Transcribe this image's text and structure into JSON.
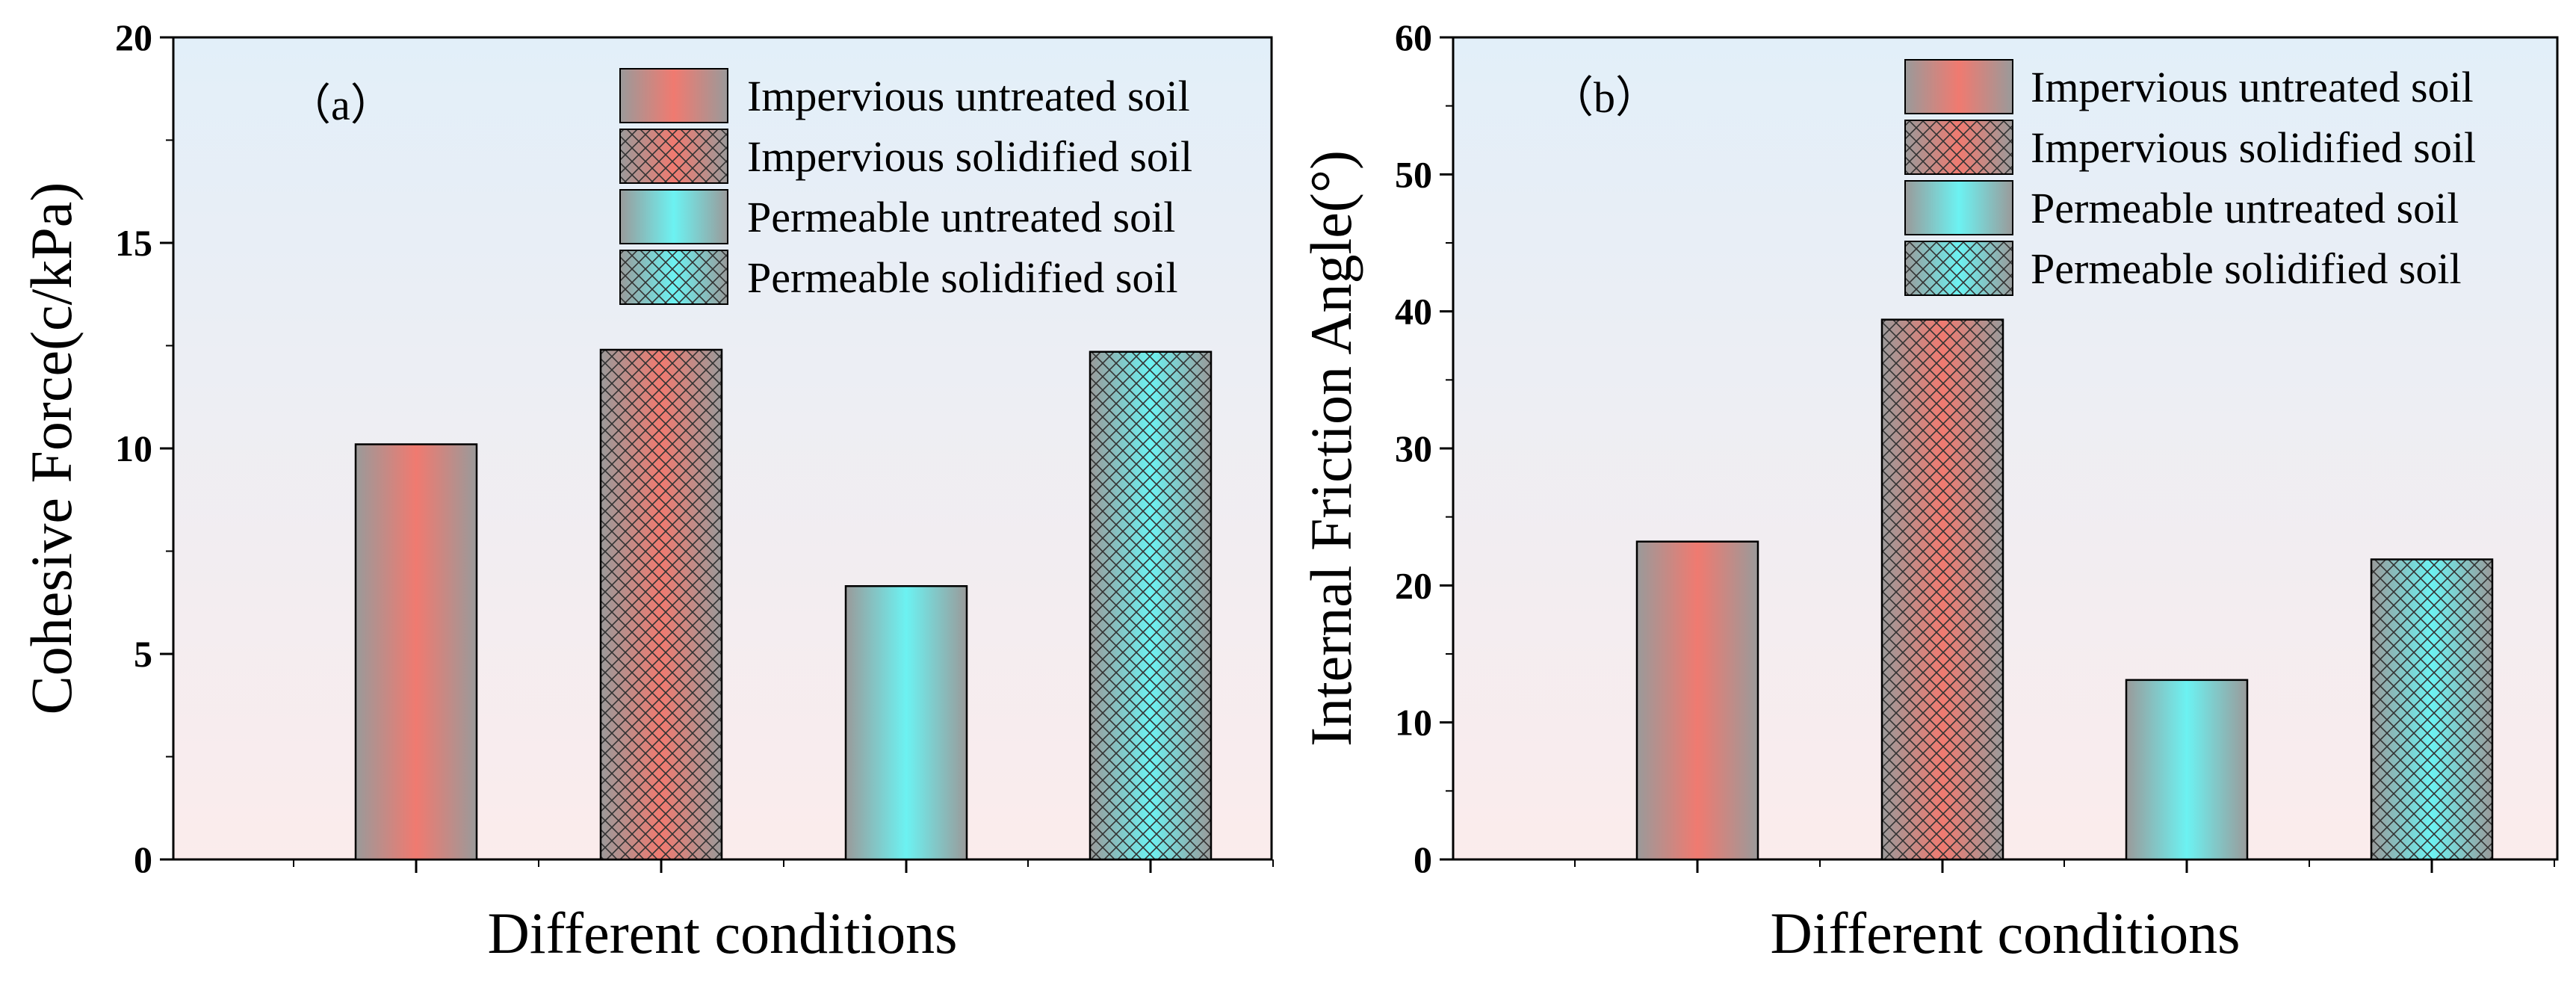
{
  "chart_data": [
    {
      "type": "bar",
      "panel_label": "（a）",
      "xlabel": "Different conditions",
      "ylabel": "Cohesive Force(c/kPa)",
      "ylim": [
        0,
        20
      ],
      "yticks": [
        "0",
        "5",
        "10",
        "15",
        "20"
      ],
      "categories": [
        "Impervious untreated soil",
        "Impervious solidified soil",
        "Permeable untreated soil",
        "Permeable solidified soil"
      ],
      "values": [
        10.1,
        12.4,
        6.65,
        12.35
      ],
      "legend_position": "top-right",
      "grid": false
    },
    {
      "type": "bar",
      "panel_label": "（b）",
      "xlabel": "Different conditions",
      "ylabel": "Internal Friction Angle(°)",
      "ylim": [
        0,
        60
      ],
      "yticks": [
        "0",
        "10",
        "20",
        "30",
        "40",
        "50",
        "60"
      ],
      "categories": [
        "Impervious untreated soil",
        "Impervious solidified soil",
        "Permeable untreated soil",
        "Permeable solidified soil"
      ],
      "values": [
        23.2,
        39.4,
        13.1,
        21.9
      ],
      "legend_position": "top-right",
      "grid": false
    }
  ],
  "legend": [
    {
      "label": "Impervious untreated soil",
      "color": "#f07a70",
      "pattern": "solid"
    },
    {
      "label": "Impervious solidified soil",
      "color": "#f07a70",
      "pattern": "crosshatch"
    },
    {
      "label": "Permeable untreated soil",
      "color": "#6cf2f2",
      "pattern": "solid"
    },
    {
      "label": "Permeable solidified soil",
      "color": "#6cf2f2",
      "pattern": "crosshatch"
    }
  ],
  "colors": {
    "red": "#f07a70",
    "cyan": "#6cf2f2",
    "edge_gray": "#9a9a9a",
    "background_top": "#e2eff9",
    "background_bottom": "#fbecec"
  }
}
